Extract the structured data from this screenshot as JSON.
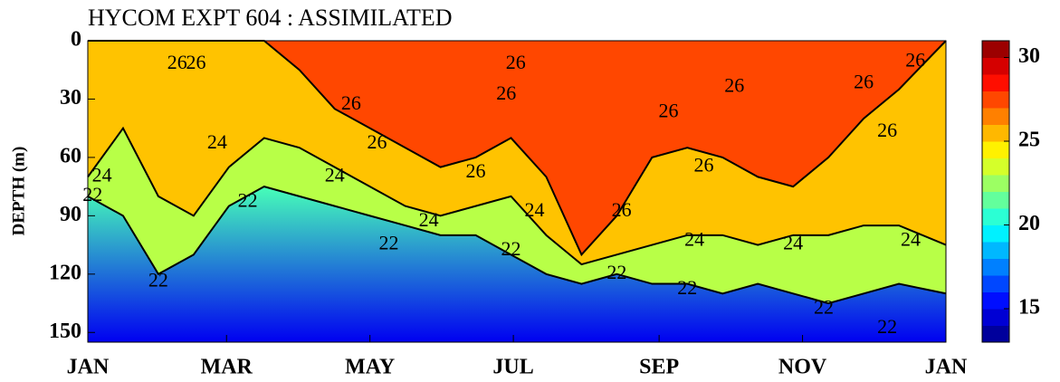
{
  "chart_data": {
    "type": "contour",
    "title": "HYCOM EXPT 604 : ASSIMILATED",
    "ylabel": "DEPTH (m)",
    "x": [
      0,
      15,
      30,
      45,
      60,
      75,
      90,
      105,
      120,
      135,
      150,
      165,
      180,
      195,
      210,
      225,
      240,
      255,
      270,
      285,
      300,
      315,
      330,
      345,
      365
    ],
    "xlim": [
      0,
      365
    ],
    "xticks": [
      {
        "value": 0,
        "label": "JAN"
      },
      {
        "value": 59,
        "label": "MAR"
      },
      {
        "value": 120,
        "label": "MAY"
      },
      {
        "value": 181,
        "label": "JUL"
      },
      {
        "value": 243,
        "label": "SEP"
      },
      {
        "value": 304,
        "label": "NOV"
      },
      {
        "value": 365,
        "label": "JAN"
      }
    ],
    "ylim": [
      0,
      155
    ],
    "yticks": [
      0,
      30,
      60,
      90,
      120,
      150
    ],
    "y_inverted": true,
    "isotherms": [
      {
        "level": 26,
        "depth": [
          0,
          0,
          0,
          0,
          0,
          0,
          15,
          35,
          45,
          55,
          65,
          60,
          50,
          70,
          110,
          90,
          60,
          55,
          60,
          70,
          75,
          60,
          40,
          25,
          0
        ]
      },
      {
        "level": 24,
        "depth": [
          70,
          45,
          80,
          90,
          65,
          50,
          55,
          65,
          75,
          85,
          90,
          85,
          80,
          100,
          115,
          110,
          105,
          100,
          100,
          105,
          100,
          100,
          95,
          95,
          105
        ]
      },
      {
        "level": 22,
        "depth": [
          80,
          90,
          120,
          110,
          85,
          75,
          80,
          85,
          90,
          95,
          100,
          100,
          110,
          120,
          125,
          120,
          125,
          125,
          130,
          125,
          130,
          135,
          130,
          125,
          130
        ]
      }
    ],
    "contour_labels": [
      {
        "level": 26,
        "x": 38,
        "depth": 12
      },
      {
        "level": 26,
        "x": 46,
        "depth": 12
      },
      {
        "level": 26,
        "x": 112,
        "depth": 33
      },
      {
        "level": 26,
        "x": 123,
        "depth": 53
      },
      {
        "level": 26,
        "x": 165,
        "depth": 68
      },
      {
        "level": 26,
        "x": 182,
        "depth": 12
      },
      {
        "level": 26,
        "x": 178,
        "depth": 28
      },
      {
        "level": 26,
        "x": 227,
        "depth": 88
      },
      {
        "level": 26,
        "x": 247,
        "depth": 37
      },
      {
        "level": 26,
        "x": 262,
        "depth": 65
      },
      {
        "level": 26,
        "x": 275,
        "depth": 24
      },
      {
        "level": 26,
        "x": 330,
        "depth": 22
      },
      {
        "level": 26,
        "x": 340,
        "depth": 47
      },
      {
        "level": 26,
        "x": 352,
        "depth": 11
      },
      {
        "level": 24,
        "x": 6,
        "depth": 70
      },
      {
        "level": 24,
        "x": 55,
        "depth": 53
      },
      {
        "level": 24,
        "x": 105,
        "depth": 70
      },
      {
        "level": 24,
        "x": 145,
        "depth": 93
      },
      {
        "level": 24,
        "x": 190,
        "depth": 88
      },
      {
        "level": 24,
        "x": 258,
        "depth": 103
      },
      {
        "level": 24,
        "x": 300,
        "depth": 105
      },
      {
        "level": 24,
        "x": 350,
        "depth": 103
      },
      {
        "level": 22,
        "x": 2,
        "depth": 80
      },
      {
        "level": 22,
        "x": 30,
        "depth": 124
      },
      {
        "level": 22,
        "x": 68,
        "depth": 83
      },
      {
        "level": 22,
        "x": 128,
        "depth": 105
      },
      {
        "level": 22,
        "x": 180,
        "depth": 108
      },
      {
        "level": 22,
        "x": 225,
        "depth": 120
      },
      {
        "level": 22,
        "x": 255,
        "depth": 128
      },
      {
        "level": 22,
        "x": 313,
        "depth": 138
      },
      {
        "level": 22,
        "x": 340,
        "depth": 148
      }
    ],
    "colormap": "jet",
    "clim": [
      13,
      31
    ],
    "colorbar_step": 1,
    "colorbar_ticks": [
      15,
      20,
      25,
      30
    ],
    "line_color": "#000000"
  }
}
